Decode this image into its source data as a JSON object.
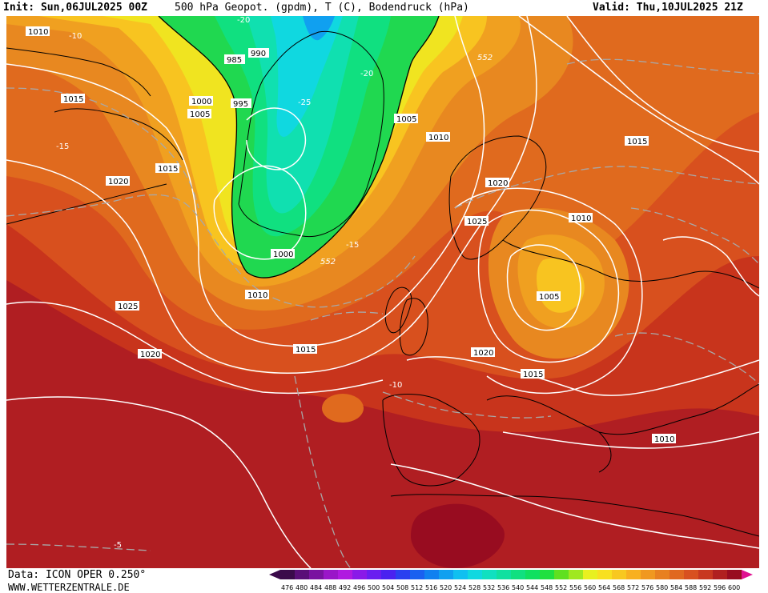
{
  "header": {
    "init": "Init: Sun,06JUL2025 00Z",
    "title": "500 hPa Geopot. (gpdm), T (C), Bodendruck (hPa)",
    "valid": "Valid: Thu,10JUL2025 21Z"
  },
  "footer": {
    "data": "Data: ICON OPER 0.250°",
    "site": "WWW.WETTERZENTRALE.DE"
  },
  "legend": {
    "values": [
      "476",
      "480",
      "484",
      "488",
      "492",
      "496",
      "500",
      "504",
      "508",
      "512",
      "516",
      "520",
      "524",
      "528",
      "532",
      "536",
      "540",
      "544",
      "548",
      "552",
      "556",
      "560",
      "564",
      "568",
      "572",
      "576",
      "580",
      "584",
      "588",
      "592",
      "596",
      "600"
    ],
    "colors": [
      "#3a0a4a",
      "#5a0e78",
      "#7a12a0",
      "#9a16c8",
      "#b01ae0",
      "#8a1ae8",
      "#6a1ef0",
      "#4a22f0",
      "#2a40f0",
      "#1a60f0",
      "#1080f0",
      "#10a0f0",
      "#10c0f0",
      "#10d8e0",
      "#10e0c0",
      "#10e0a0",
      "#10e080",
      "#10e060",
      "#20e040",
      "#60e020",
      "#a0e820",
      "#e8f020",
      "#f8e020",
      "#f8c820",
      "#f8b020",
      "#f09820",
      "#e88020",
      "#e06820",
      "#d85020",
      "#c83820",
      "#b02020",
      "#980c20"
    ]
  },
  "isobars": [
    "1010",
    "1015",
    "1020",
    "1025",
    "1000",
    "1005",
    "995",
    "990",
    "985",
    "1015",
    "1010",
    "1020",
    "1015",
    "1010",
    "1005",
    "1010",
    "1015",
    "1020",
    "1025",
    "1020",
    "1015",
    "1010",
    "1005",
    "1000"
  ],
  "temps": [
    "-10",
    "-15",
    "-20",
    "-25",
    "-5",
    "-10",
    "-15",
    "-20"
  ],
  "geopot": [
    "552",
    "552"
  ],
  "colors": {
    "isobar": "#ffffff",
    "isotherm": "#a8a8a8",
    "coast": "#000000"
  }
}
